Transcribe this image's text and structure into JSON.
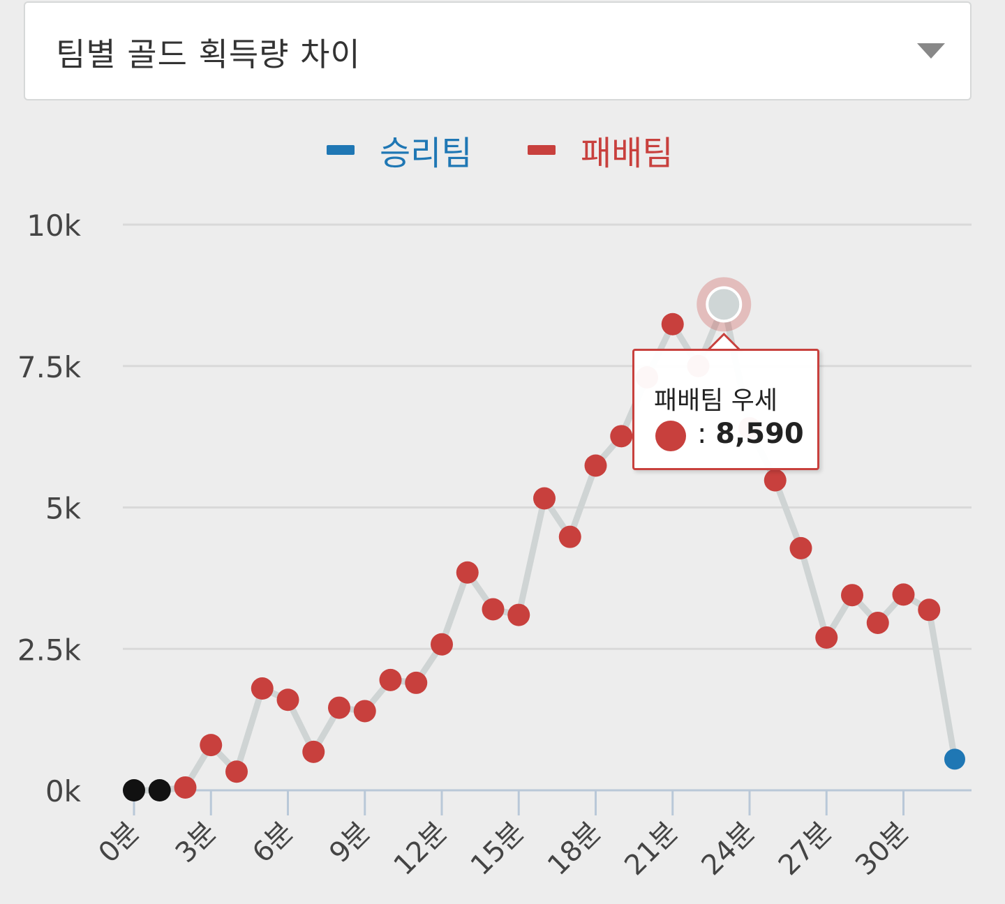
{
  "dropdown": {
    "selected": "팀별 골드 획득량 차이",
    "icon": "chevron-down-icon"
  },
  "colors": {
    "win": "#1f77b4",
    "lose": "#c8403d",
    "neutral": "#111111",
    "line": "#cfd4d4",
    "grid": "#d9d9d9",
    "axis": "#b9c8d8"
  },
  "tooltip": {
    "title": "패배팀 우세",
    "separator": ":",
    "value": "8,590",
    "x": 23
  },
  "chart_data": {
    "type": "line",
    "legend": [
      {
        "label": "승리팀",
        "color": "#1f77b4"
      },
      {
        "label": "패배팀",
        "color": "#c8403d"
      }
    ],
    "legend_position": "top-center",
    "y_ticks": [
      "0k",
      "2.5k",
      "5k",
      "7.5k",
      "10k"
    ],
    "y_tick_values": [
      0,
      2500,
      5000,
      7500,
      10000
    ],
    "ylim": [
      0,
      10000
    ],
    "x_ticks": [
      "0분",
      "3분",
      "6분",
      "9분",
      "12분",
      "15분",
      "18분",
      "21분",
      "24분",
      "27분",
      "30분"
    ],
    "x_tick_values": [
      0,
      3,
      6,
      9,
      12,
      15,
      18,
      21,
      24,
      27,
      30
    ],
    "xlim": [
      0,
      32
    ],
    "grid": true,
    "series": [
      {
        "x": [
          0,
          1,
          2,
          3,
          4,
          5,
          6,
          7,
          8,
          9,
          10,
          11,
          12,
          13,
          14,
          15,
          16,
          17,
          18,
          19,
          20,
          21,
          22,
          23,
          24,
          25,
          26,
          27,
          28,
          29,
          30,
          31,
          32
        ],
        "values": [
          0,
          0,
          50,
          800,
          330,
          1800,
          1600,
          680,
          1460,
          1400,
          1950,
          1900,
          2580,
          3850,
          3200,
          3100,
          5160,
          4480,
          5740,
          6260,
          7300,
          8240,
          7500,
          8590,
          6400,
          5480,
          4280,
          2700,
          3450,
          2960,
          3460,
          3190,
          550
        ],
        "team": [
          "neutral",
          "neutral",
          "lose",
          "lose",
          "lose",
          "lose",
          "lose",
          "lose",
          "lose",
          "lose",
          "lose",
          "lose",
          "lose",
          "lose",
          "lose",
          "lose",
          "lose",
          "lose",
          "lose",
          "lose",
          "lose",
          "lose",
          "lose",
          "lose",
          "lose",
          "lose",
          "lose",
          "lose",
          "lose",
          "lose",
          "lose",
          "lose",
          "win"
        ]
      }
    ]
  }
}
